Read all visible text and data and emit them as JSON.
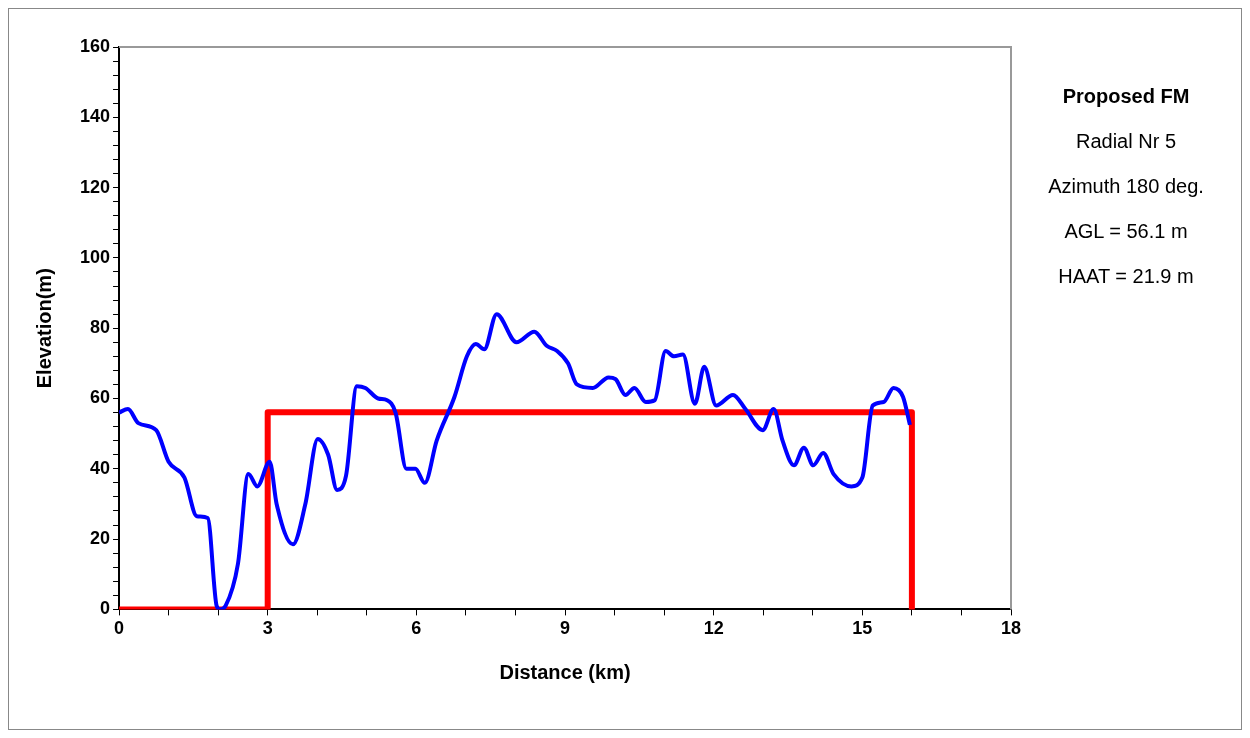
{
  "chart_data": {
    "type": "line",
    "xlabel": "Distance (km)",
    "ylabel": "Elevation(m)",
    "annotations": [
      "Proposed FM",
      "Radial Nr 5",
      "Azimuth 180 deg.",
      "AGL = 56.1 m",
      "HAAT = 21.9 m"
    ],
    "xlim": [
      0,
      18
    ],
    "ylim": [
      0,
      160
    ],
    "xticks": [
      0,
      {
        "value": 1,
        "label": null
      },
      {
        "value": 2,
        "label": null
      },
      3,
      {
        "value": 4,
        "label": null
      },
      {
        "value": 5,
        "label": null
      },
      6,
      {
        "value": 7,
        "label": null
      },
      {
        "value": 8,
        "label": null
      },
      9,
      {
        "value": 10,
        "label": null
      },
      {
        "value": 11,
        "label": null
      },
      12,
      {
        "value": 13,
        "label": null
      },
      {
        "value": 14,
        "label": null
      },
      15,
      {
        "value": 16,
        "label": null
      },
      {
        "value": 17,
        "label": null
      },
      18
    ],
    "yticks": [
      0,
      {
        "value": 4,
        "label": null
      },
      {
        "value": 8,
        "label": null
      },
      {
        "value": 12,
        "label": null
      },
      {
        "value": 16,
        "label": null
      },
      20,
      {
        "value": 24,
        "label": null
      },
      {
        "value": 28,
        "label": null
      },
      {
        "value": 32,
        "label": null
      },
      {
        "value": 36,
        "label": null
      },
      40,
      {
        "value": 44,
        "label": null
      },
      {
        "value": 48,
        "label": null
      },
      {
        "value": 52,
        "label": null
      },
      {
        "value": 56,
        "label": null
      },
      60,
      {
        "value": 64,
        "label": null
      },
      {
        "value": 68,
        "label": null
      },
      {
        "value": 72,
        "label": null
      },
      {
        "value": 76,
        "label": null
      },
      80,
      {
        "value": 84,
        "label": null
      },
      {
        "value": 88,
        "label": null
      },
      {
        "value": 92,
        "label": null
      },
      {
        "value": 96,
        "label": null
      },
      100,
      {
        "value": 104,
        "label": null
      },
      {
        "value": 108,
        "label": null
      },
      {
        "value": 112,
        "label": null
      },
      {
        "value": 116,
        "label": null
      },
      120,
      {
        "value": 124,
        "label": null
      },
      {
        "value": 128,
        "label": null
      },
      {
        "value": 132,
        "label": null
      },
      {
        "value": 136,
        "label": null
      },
      140,
      {
        "value": 144,
        "label": null
      },
      {
        "value": 148,
        "label": null
      },
      {
        "value": 152,
        "label": null
      },
      {
        "value": 156,
        "label": null
      },
      160
    ],
    "grid": false,
    "legend": false,
    "marker": "none",
    "line_style": "solid",
    "series": [
      {
        "color": "#0000ff",
        "x": [
          0,
          0.18,
          0.39,
          0.75,
          1.0,
          1.32,
          1.57,
          1.79,
          1.97,
          2.04,
          2.15,
          2.4,
          2.61,
          2.79,
          3.04,
          3.18,
          3.51,
          3.76,
          4.01,
          4.22,
          4.4,
          4.58,
          4.8,
          4.97,
          5.23,
          5.41,
          5.58,
          5.8,
          5.98,
          6.17,
          6.41,
          6.77,
          7.02,
          7.2,
          7.37,
          7.62,
          8.02,
          8.38,
          8.63,
          8.84,
          9.06,
          9.24,
          9.56,
          9.88,
          10.02,
          10.22,
          10.4,
          10.63,
          10.81,
          11.03,
          11.2,
          11.38,
          11.62,
          11.81,
          12.05,
          12.39,
          12.64,
          12.99,
          13.21,
          13.39,
          13.62,
          13.82,
          14.01,
          14.21,
          14.42,
          14.78,
          15.0,
          15.21,
          15.43,
          15.63,
          15.82,
          15.96
        ],
        "values": [
          56,
          57,
          53,
          51,
          42,
          37.5,
          26.5,
          26,
          1,
          0,
          1,
          13,
          38.5,
          35,
          42,
          30,
          18.5,
          30,
          48.5,
          44,
          34,
          38,
          63.5,
          63,
          60,
          59.5,
          56,
          40,
          40,
          36,
          48,
          60.5,
          72,
          75.5,
          74,
          84,
          76,
          79,
          75,
          73.5,
          70,
          64,
          63,
          66,
          65.5,
          61,
          63,
          59,
          59.5,
          73.5,
          72,
          72.5,
          58.5,
          69,
          58,
          61,
          57,
          51,
          57,
          48,
          41,
          46,
          41,
          44.5,
          38.5,
          35,
          37.5,
          58,
          59,
          63,
          60.5,
          52.5
        ]
      },
      {
        "color": "#ff0000",
        "x": [
          0,
          3,
          3,
          16,
          16
        ],
        "values": [
          0,
          0,
          56.1,
          56.1,
          0
        ]
      }
    ]
  }
}
